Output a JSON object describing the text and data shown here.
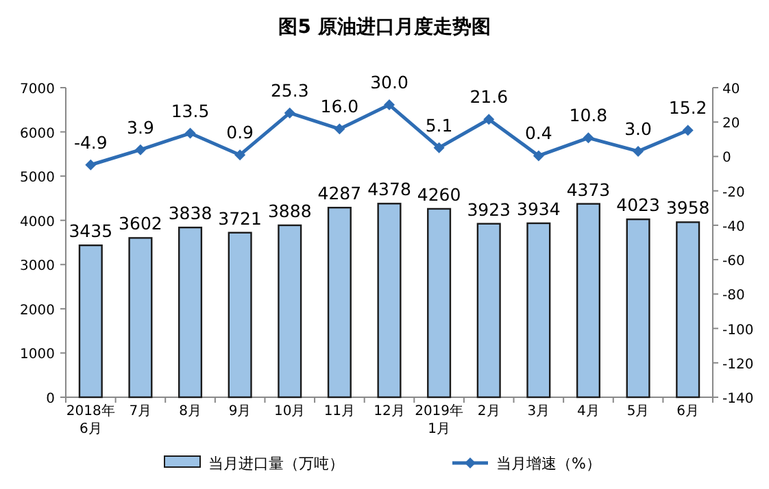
{
  "chart_data": {
    "type": "bar",
    "title": "图5  原油进口月度走势图",
    "categories": [
      "2018年\n6月",
      "7月",
      "8月",
      "9月",
      "10月",
      "11月",
      "12月",
      "2019年\n1月",
      "2月",
      "3月",
      "4月",
      "5月",
      "6月"
    ],
    "series": [
      {
        "name": "当月进口量（万吨）",
        "color": "#9dc3e6",
        "values": [
          3435,
          3602,
          3838,
          3721,
          3888,
          4287,
          4378,
          4260,
          3923,
          3934,
          4373,
          4023,
          3958
        ]
      },
      {
        "name": "当月增速（%）",
        "type": "line",
        "axis": "y2",
        "color": "#2e6db4",
        "marker": "diamond",
        "values": [
          -4.9,
          3.9,
          13.5,
          0.9,
          25.3,
          16.0,
          30.0,
          5.1,
          21.6,
          0.4,
          10.8,
          3.0,
          15.2
        ],
        "value_labels": [
          "-4.9",
          "3.9",
          "13.5",
          "0.9",
          "25.3",
          "16.0",
          "30.0",
          "5.1",
          "21.6",
          "0.4",
          "10.8",
          "3.0",
          "15.2"
        ]
      }
    ],
    "ylim": [
      0,
      7000
    ],
    "yticks": [
      0,
      1000,
      2000,
      3000,
      4000,
      5000,
      6000,
      7000
    ],
    "y2lim": [
      -140,
      40
    ],
    "y2ticks": [
      -140,
      -120,
      -100,
      -80,
      -60,
      -40,
      -20,
      0,
      20,
      40
    ],
    "data_labels": true,
    "grid": false,
    "legend": "bottom"
  }
}
